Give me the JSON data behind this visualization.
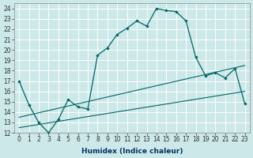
{
  "xlabel": "Humidex (Indice chaleur)",
  "background_color": "#cce8e8",
  "grid_color": "#ffffff",
  "line_color": "#006666",
  "xlim": [
    -0.5,
    23.5
  ],
  "ylim": [
    12,
    24.5
  ],
  "xticks": [
    0,
    1,
    2,
    3,
    4,
    5,
    6,
    7,
    8,
    9,
    10,
    11,
    12,
    13,
    14,
    15,
    16,
    17,
    18,
    19,
    20,
    21,
    22,
    23
  ],
  "yticks": [
    12,
    13,
    14,
    15,
    16,
    17,
    18,
    19,
    20,
    21,
    22,
    23,
    24
  ],
  "main_x": [
    0,
    1,
    2,
    3,
    4,
    5,
    6,
    7,
    8,
    9,
    10,
    11,
    12,
    13,
    14,
    15,
    16,
    17,
    18,
    19,
    20,
    21,
    22,
    23
  ],
  "main_y": [
    17.0,
    14.7,
    13.0,
    12.0,
    13.3,
    15.2,
    14.5,
    14.3,
    19.5,
    20.2,
    21.5,
    22.1,
    22.8,
    22.3,
    24.0,
    23.8,
    23.7,
    22.8,
    19.3,
    17.5,
    17.8,
    17.3,
    18.2,
    14.8
  ],
  "line2_x": [
    0,
    23
  ],
  "line2_y": [
    13.5,
    18.5
  ],
  "line3_x": [
    0,
    23
  ],
  "line3_y": [
    12.5,
    16.0
  ],
  "xlabel_color": "#003366",
  "xlabel_fontsize": 6.5,
  "tick_fontsize": 5.5
}
